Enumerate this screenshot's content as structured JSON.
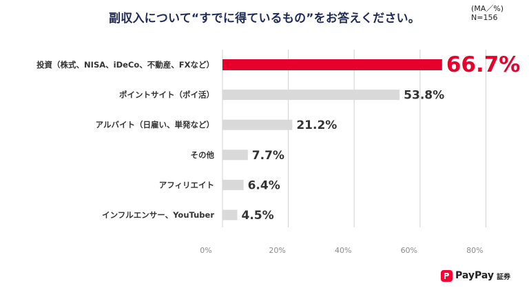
{
  "header": {
    "title": "副収入について“すでに得ているもの”をお答えください。",
    "note_line1": "(MA／%)",
    "note_line2": "N=156"
  },
  "logo": {
    "brand": "PayPay",
    "suffix": "証券"
  },
  "colors": {
    "highlight": "#e8002d",
    "bar": "#d9d9d9",
    "grid": "#d0d0d0",
    "title": "#1f2a56"
  },
  "chart_data": {
    "type": "bar",
    "orientation": "horizontal",
    "categories": [
      "投資（株式、NISA、iDeCo、不動産、FXなど）",
      "ポイントサイト（ポイ活）",
      "アルバイト（日雇い、単発など）",
      "その他",
      "アフィリエイト",
      "インフルエンサー、YouTuber"
    ],
    "values": [
      66.7,
      53.8,
      21.2,
      7.7,
      6.4,
      4.5
    ],
    "value_labels": [
      "66.7%",
      "53.8%",
      "21.2%",
      "7.7%",
      "6.4%",
      "4.5%"
    ],
    "xticks": [
      0,
      20,
      40,
      60,
      80
    ],
    "xtick_labels": [
      "0%",
      "20%",
      "40%",
      "60%",
      "80%"
    ],
    "xlim": [
      0,
      80
    ],
    "grid": true,
    "highlight_index": 0
  }
}
